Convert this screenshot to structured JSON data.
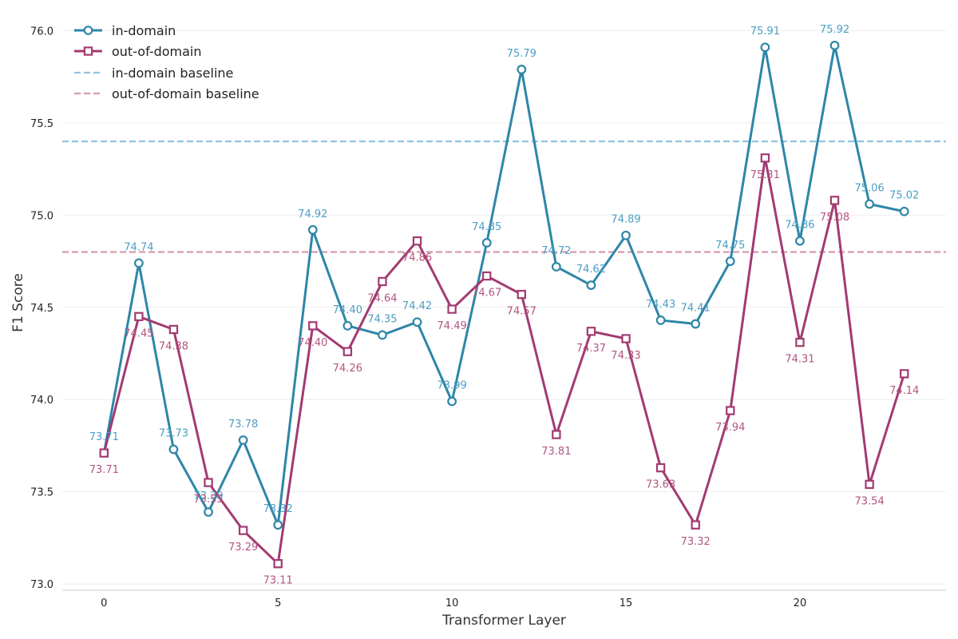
{
  "chart_data": {
    "type": "line",
    "xlabel": "Transformer Layer",
    "ylabel": "F1 Score",
    "xlim": [
      -1.2,
      24.2
    ],
    "ylim": [
      72.97,
      76.08
    ],
    "xticks": [
      0,
      5,
      10,
      15,
      20
    ],
    "yticks": [
      73.0,
      73.5,
      74.0,
      74.5,
      75.0,
      75.5,
      76.0
    ],
    "ytick_labels": [
      "73.0",
      "73.5",
      "74.0",
      "74.5",
      "75.0",
      "75.5",
      "76.0"
    ],
    "grid": "horizontal",
    "legend_position": "top-left",
    "x": [
      0,
      1,
      2,
      3,
      4,
      5,
      6,
      7,
      8,
      9,
      10,
      11,
      12,
      13,
      14,
      15,
      16,
      17,
      18,
      19,
      20,
      21,
      22,
      23
    ],
    "series": [
      {
        "name": "in-domain",
        "color": "#2e86a8",
        "label_color": "#4b9ec4",
        "marker": "circle",
        "values": [
          73.71,
          74.74,
          73.73,
          73.39,
          73.78,
          73.32,
          74.92,
          74.4,
          74.35,
          74.42,
          73.99,
          74.85,
          75.79,
          74.72,
          74.62,
          74.89,
          74.43,
          74.41,
          74.75,
          75.91,
          74.86,
          75.92,
          75.06,
          75.02
        ],
        "value_labels": [
          "73.71",
          "74.74",
          "73.73",
          "73.39",
          "73.78",
          "73.32",
          "74.92",
          "74.40",
          "74.35",
          "74.42",
          "73.99",
          "74.85",
          "75.79",
          "74.72",
          "74.62",
          "74.89",
          "74.43",
          "74.41",
          "74.75",
          "75.91",
          "74.86",
          "75.92",
          "75.06",
          "75.02"
        ]
      },
      {
        "name": "out-of-domain",
        "color": "#a23b72",
        "label_color": "#b3547f",
        "marker": "square",
        "values": [
          73.71,
          74.45,
          74.38,
          73.55,
          73.29,
          73.11,
          74.4,
          74.26,
          74.64,
          74.86,
          74.49,
          74.67,
          74.57,
          73.81,
          74.37,
          74.33,
          73.63,
          73.32,
          73.94,
          75.31,
          74.31,
          75.08,
          73.54,
          74.14
        ],
        "value_labels": [
          "73.71",
          "74.45",
          "74.38",
          "73.55",
          "73.29",
          "73.11",
          "74.40",
          "74.26",
          "74.64",
          "74.86",
          "74.49",
          "74.67",
          "74.57",
          "73.81",
          "74.37",
          "74.33",
          "73.63",
          "73.32",
          "73.94",
          "75.31",
          "74.31",
          "75.08",
          "73.54",
          "74.14"
        ]
      }
    ],
    "baselines": [
      {
        "name": "in-domain baseline",
        "value": 75.4,
        "color": "#8ec4dc",
        "style": "dashed"
      },
      {
        "name": "out-of-domain baseline",
        "value": 74.8,
        "color": "#d89aaf",
        "style": "dashed"
      }
    ]
  }
}
